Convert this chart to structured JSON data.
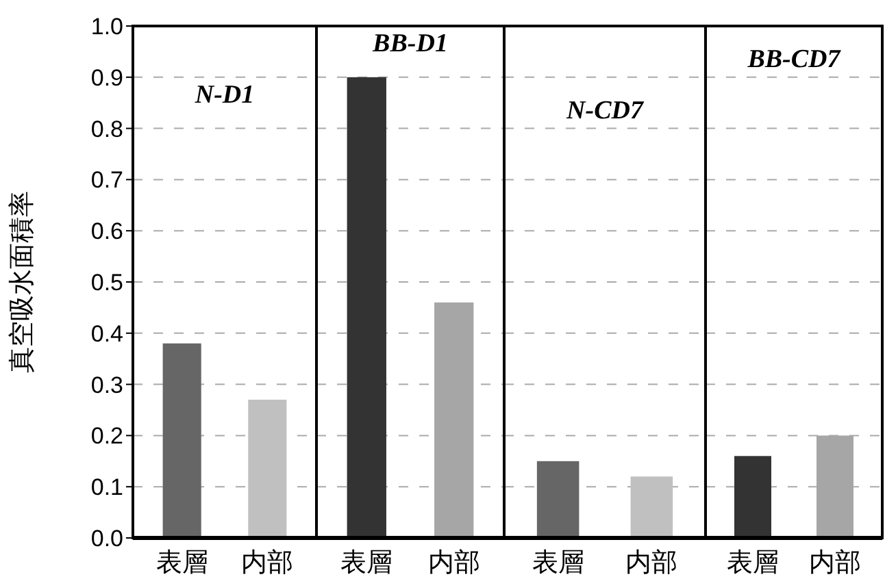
{
  "chart_data": [
    {
      "type": "bar",
      "title": "N-D1",
      "ylabel": "真空吸水面積率",
      "categories": [
        "表層",
        "内部"
      ],
      "values": [
        0.38,
        0.27
      ],
      "colors": [
        "#666666",
        "#c0c0c0"
      ],
      "ylim": [
        0,
        1
      ],
      "yticks": [
        {
          "value": 0,
          "label": "0.0"
        },
        0.1,
        0.2,
        0.3,
        0.4,
        0.5,
        0.6,
        0.7,
        0.8,
        0.9,
        {
          "value": 1,
          "label": "1.0"
        }
      ],
      "grid": "y"
    },
    {
      "type": "bar",
      "title": "BB-D1",
      "categories": [
        "表層",
        "内部"
      ],
      "values": [
        0.9,
        0.46
      ],
      "colors": [
        "#333333",
        "#a6a6a6"
      ],
      "ylim": [
        0,
        1
      ],
      "yticks": [
        0,
        0.1,
        0.2,
        0.3,
        0.4,
        0.5,
        0.6,
        0.7,
        0.8,
        0.9,
        1
      ],
      "grid": "y",
      "tick_labels": "x"
    },
    {
      "type": "bar",
      "title": "N-CD7",
      "categories": [
        "表層",
        "内部"
      ],
      "values": [
        0.15,
        0.12
      ],
      "colors": [
        "#666666",
        "#c0c0c0"
      ],
      "ylim": [
        0,
        1
      ],
      "yticks": [
        0,
        0.1,
        0.2,
        0.3,
        0.4,
        0.5,
        0.6,
        0.7,
        0.8,
        0.9,
        1
      ],
      "grid": "y",
      "tick_labels": "x"
    },
    {
      "type": "bar",
      "title": "BB-CD7",
      "categories": [
        "表層",
        "内部"
      ],
      "values": [
        0.16,
        0.2
      ],
      "colors": [
        "#333333",
        "#a6a6a6"
      ],
      "ylim": [
        0,
        1
      ],
      "yticks": [
        0,
        0.1,
        0.2,
        0.3,
        0.4,
        0.5,
        0.6,
        0.7,
        0.8,
        0.9,
        1
      ],
      "grid": "y",
      "tick_labels": "x"
    }
  ]
}
